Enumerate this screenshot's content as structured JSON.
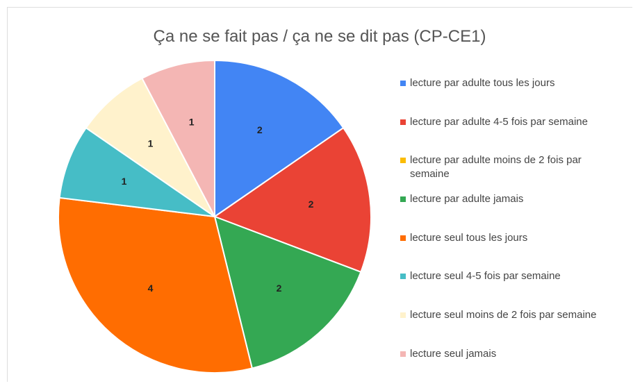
{
  "chart_data": {
    "type": "pie",
    "title": "Ça ne se fait pas / ça ne se dit pas (CP-CE1)",
    "categories": [
      "lecture par adulte tous les jours",
      "lecture par adulte 4-5 fois par semaine",
      "lecture par adulte moins de 2 fois par semaine",
      "lecture par adulte jamais",
      "lecture seul tous les jours",
      "lecture seul 4-5 fois par semaine",
      "lecture seul moins de 2 fois par semaine",
      "lecture seul jamais"
    ],
    "values": [
      2,
      2,
      0,
      2,
      4,
      1,
      1,
      1
    ],
    "colors": [
      "#4285f4",
      "#ea4335",
      "#fbbc04",
      "#34a853",
      "#ff6d01",
      "#46bdc6",
      "#fff2cc",
      "#f4b6b4"
    ],
    "legend": "right"
  }
}
